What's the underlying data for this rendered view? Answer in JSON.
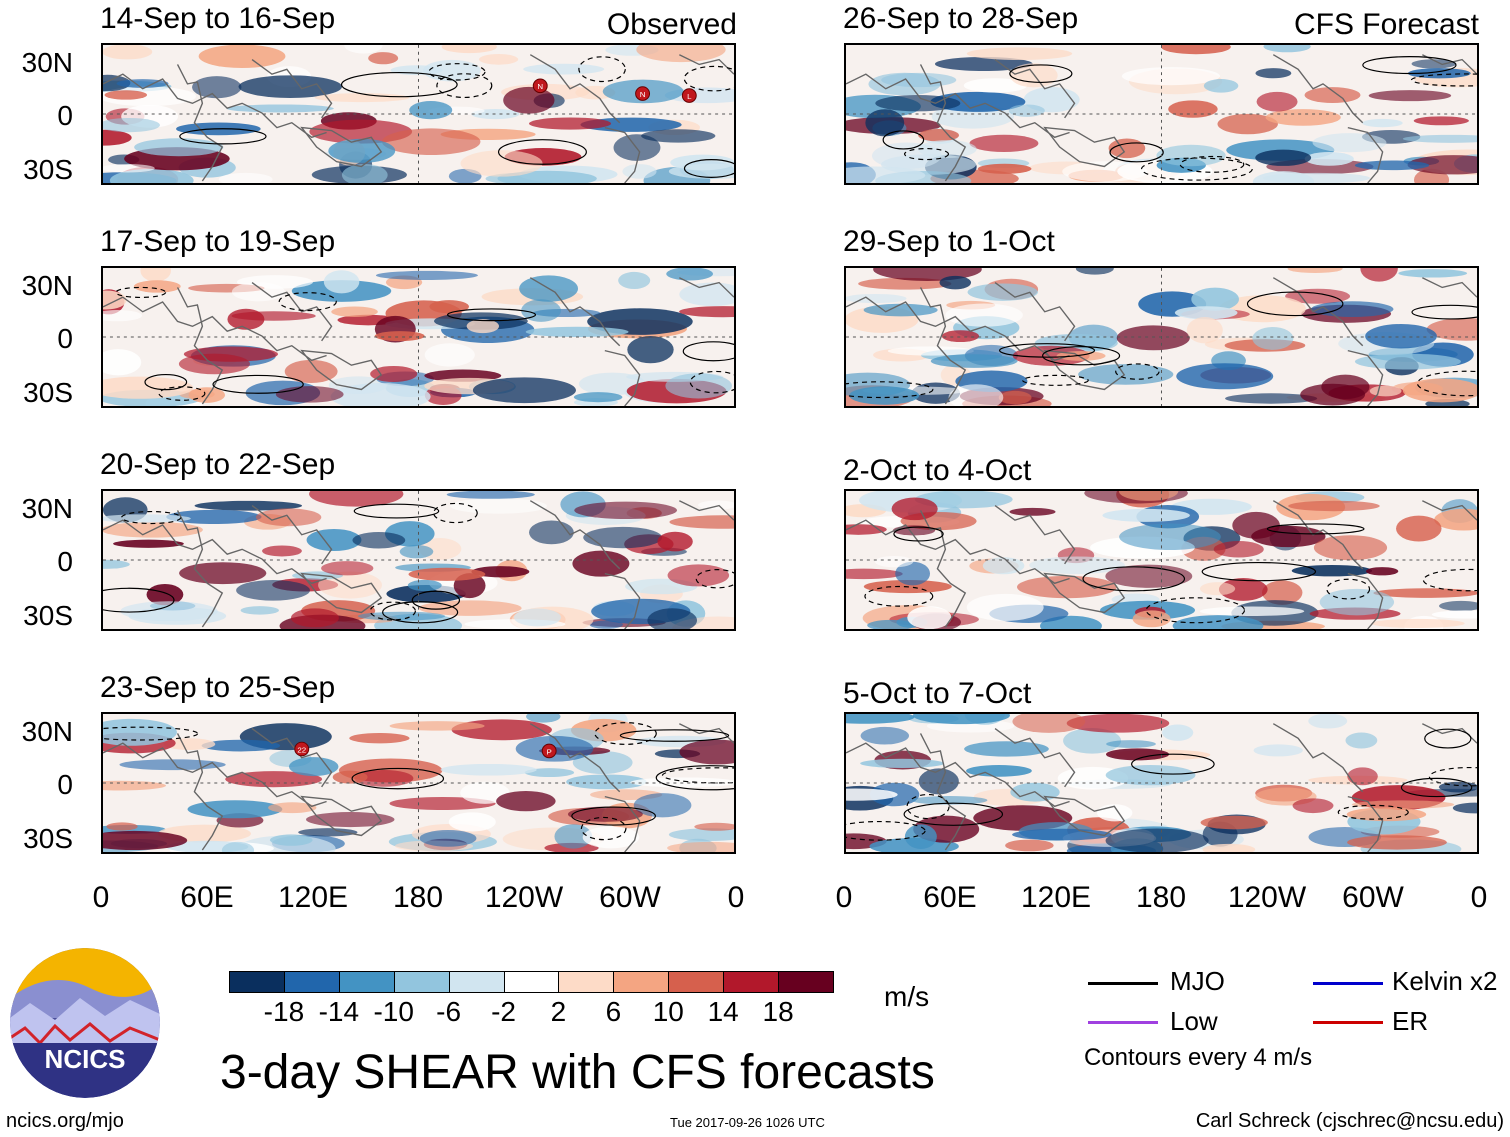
{
  "panels": [
    {
      "title": "14-Sep to 16-Sep",
      "tag": "Observed",
      "column": "observed"
    },
    {
      "title": "17-Sep to 19-Sep",
      "tag": "",
      "column": "observed"
    },
    {
      "title": "20-Sep to 22-Sep",
      "tag": "",
      "column": "observed"
    },
    {
      "title": "23-Sep to 25-Sep",
      "tag": "",
      "column": "observed"
    },
    {
      "title": "26-Sep to 28-Sep",
      "tag": "CFS Forecast",
      "column": "forecast"
    },
    {
      "title": "29-Sep to 1-Oct",
      "tag": "",
      "column": "forecast"
    },
    {
      "title": "2-Oct to 4-Oct",
      "tag": "",
      "column": "forecast"
    },
    {
      "title": "5-Oct to 7-Oct",
      "tag": "",
      "column": "forecast"
    }
  ],
  "lat_labels": [
    "30N",
    "0",
    "30S"
  ],
  "lon_labels": [
    "0",
    "60E",
    "120E",
    "180",
    "120W",
    "60W",
    "0"
  ],
  "storm_markers": {
    "p0": [
      "N",
      "N",
      "L"
    ],
    "p3": [
      "22",
      "P"
    ]
  },
  "colorbar": {
    "colors": [
      "#0a2f5e",
      "#2166ac",
      "#4393c3",
      "#92c5de",
      "#d1e5f0",
      "#ffffff",
      "#fddbc7",
      "#f4a582",
      "#d6604d",
      "#b2182b",
      "#67001f"
    ],
    "labels": [
      "-18",
      "-14",
      "-10",
      "-6",
      "-2",
      "2",
      "6",
      "10",
      "14",
      "18"
    ],
    "units": "m/s"
  },
  "legend": {
    "items": [
      {
        "label": "MJO",
        "color": "#000000"
      },
      {
        "label": "Kelvin x2",
        "color": "#0000cc"
      },
      {
        "label": "Low",
        "color": "#a040e0"
      },
      {
        "label": "ER",
        "color": "#cc0000"
      }
    ],
    "note": "Contours every 4 m/s"
  },
  "title": "3-day SHEAR with CFS forecasts",
  "logo_text": "NCICS",
  "footer": {
    "url": "ncics.org/mjo",
    "timestamp": "Tue 2017-09-26 1026 UTC",
    "credit": "Carl Schreck (cjschrec@ncsu.edu)"
  }
}
